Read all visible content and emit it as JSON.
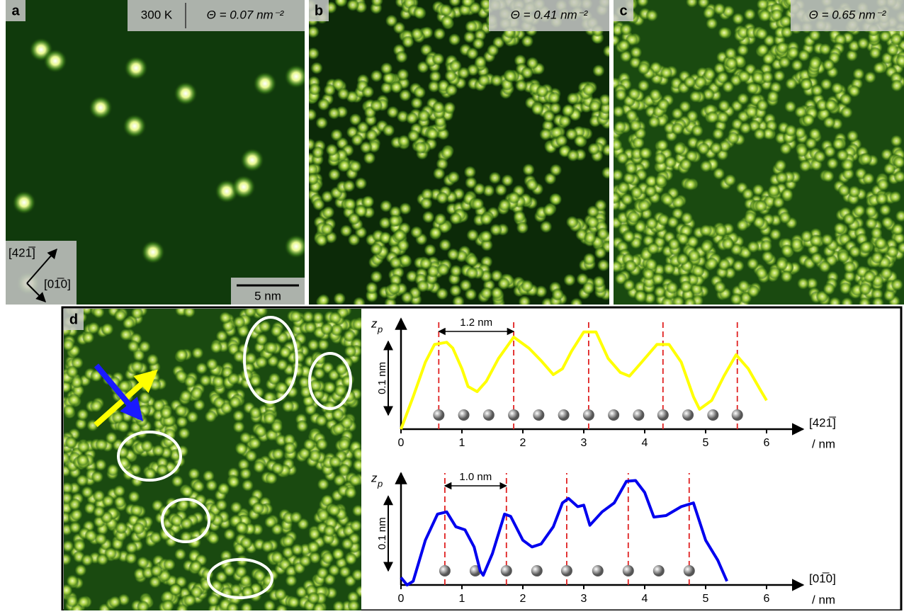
{
  "panels": [
    {
      "label": "a",
      "temperature": "300 K",
      "coverage": "Θ = 0.07 nm⁻²",
      "dir1": "[421̅]",
      "dir2": "[01̅0]",
      "scalebar": "5 nm"
    },
    {
      "label": "b",
      "coverage": "Θ = 0.41 nm⁻²"
    },
    {
      "label": "c",
      "coverage": "Θ = 0.65 nm⁻²"
    },
    {
      "label": "d"
    }
  ],
  "chart_data": [
    {
      "type": "line",
      "ylabel": "z",
      "ylabel_sub": "p",
      "xlabel": "[421̅]",
      "xunit": "/ nm",
      "color": "#ffff00",
      "x": [
        0,
        0.2,
        0.4,
        0.55,
        0.75,
        0.85,
        1.0,
        1.1,
        1.25,
        1.4,
        1.6,
        1.85,
        2.1,
        2.3,
        2.5,
        2.65,
        2.8,
        3.0,
        3.2,
        3.4,
        3.6,
        3.75,
        3.95,
        4.2,
        4.4,
        4.6,
        4.8,
        4.9,
        5.1,
        5.3,
        5.5,
        5.7,
        5.9,
        6.0
      ],
      "values": [
        0.0,
        0.044,
        0.091,
        0.115,
        0.118,
        0.11,
        0.082,
        0.058,
        0.051,
        0.065,
        0.096,
        0.125,
        0.11,
        0.093,
        0.074,
        0.082,
        0.106,
        0.132,
        0.132,
        0.096,
        0.077,
        0.072,
        0.091,
        0.115,
        0.115,
        0.091,
        0.044,
        0.027,
        0.039,
        0.072,
        0.101,
        0.082,
        0.053,
        0.039
      ],
      "xlim": [
        0,
        6.6
      ],
      "xticks": [
        0,
        1,
        2,
        3,
        4,
        5,
        6
      ],
      "ylim": [
        0,
        0.15
      ],
      "markers": [
        0.62,
        1.85,
        3.08,
        4.3,
        5.52
      ],
      "atoms": [
        0.62,
        1.03,
        1.44,
        1.85,
        2.26,
        2.67,
        3.08,
        3.49,
        3.9,
        4.3,
        4.71,
        5.12,
        5.52
      ],
      "spacing_label": "1.2 nm",
      "scalebar": {
        "value": 0.1,
        "label": "0.1 nm"
      }
    },
    {
      "type": "line",
      "ylabel": "z",
      "ylabel_sub": "p",
      "xlabel": "[01̅0]",
      "xunit": "/ nm",
      "color": "#0000ee",
      "x": [
        0,
        0.1,
        0.2,
        0.4,
        0.6,
        0.75,
        0.9,
        1.05,
        1.2,
        1.3,
        1.35,
        1.5,
        1.7,
        1.8,
        2.0,
        2.15,
        2.3,
        2.5,
        2.65,
        2.75,
        2.9,
        3.0,
        3.1,
        3.3,
        3.5,
        3.7,
        3.85,
        4.0,
        4.15,
        4.35,
        4.6,
        4.8,
        5.0,
        5.2,
        5.35
      ],
      "values": [
        0.01,
        0.0,
        0.005,
        0.06,
        0.095,
        0.098,
        0.078,
        0.074,
        0.051,
        0.019,
        0.013,
        0.042,
        0.095,
        0.092,
        0.06,
        0.051,
        0.055,
        0.078,
        0.11,
        0.116,
        0.105,
        0.107,
        0.08,
        0.098,
        0.11,
        0.139,
        0.14,
        0.124,
        0.091,
        0.093,
        0.105,
        0.11,
        0.06,
        0.033,
        0.005
      ],
      "xlim": [
        0,
        6.6
      ],
      "xticks": [
        0,
        1,
        2,
        3,
        4,
        5,
        6
      ],
      "ylim": [
        0,
        0.15
      ],
      "markers": [
        0.72,
        1.73,
        2.72,
        3.73,
        4.73
      ],
      "atoms": [
        0.72,
        1.22,
        1.73,
        2.23,
        2.72,
        3.23,
        3.73,
        4.23,
        4.73
      ],
      "spacing_label": "1.0 nm",
      "scalebar": {
        "value": 0.1,
        "label": "0.1 nm"
      }
    }
  ]
}
